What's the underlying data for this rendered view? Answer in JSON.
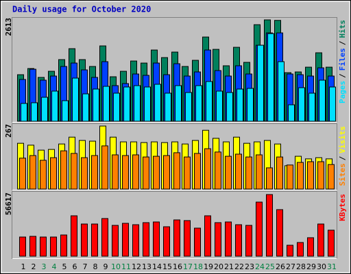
{
  "title": "Daily usage for October 2020",
  "legend_separator": "/",
  "chart_data": [
    {
      "type": "bar",
      "ylim": [
        0,
        2613
      ],
      "yticks": [
        2613
      ],
      "series": [
        {
          "name": "Hits",
          "color": "#00805c",
          "values": [
            1200,
            1359,
            1130,
            1288,
            1589,
            1871,
            1589,
            1412,
            1942,
            1147,
            1288,
            1553,
            1500,
            1836,
            1641,
            1783,
            1412,
            1571,
            2171,
            1853,
            1430,
            1906,
            1518,
            2489,
            2613,
            2600,
            1253,
            1271,
            1394,
            1765,
            1394
          ]
        },
        {
          "name": "Files",
          "color": "#0040ff",
          "values": [
            1077,
            1341,
            1059,
            1165,
            1412,
            1500,
            1324,
            1130,
            1536,
            918,
            971,
            1218,
            1183,
            1500,
            1200,
            1483,
            1165,
            1271,
            1836,
            1306,
            1165,
            1430,
            1218,
            1959,
            2277,
            2277,
            1218,
            1200,
            1165,
            1377,
            1165
          ]
        },
        {
          "name": "Pages",
          "color": "#00e0ff",
          "values": [
            459,
            477,
            618,
            777,
            530,
            1112,
            706,
            830,
            900,
            724,
            883,
            918,
            883,
            953,
            724,
            918,
            741,
            918,
            1024,
            777,
            741,
            830,
            847,
            1959,
            2259,
            1536,
            424,
            865,
            724,
            1059,
            883
          ]
        }
      ]
    },
    {
      "type": "bar",
      "ylim": [
        0,
        267
      ],
      "yticks": [
        267
      ],
      "series": [
        {
          "name": "Visits",
          "color": "#ffff00",
          "values": [
            194,
            186,
            165,
            168,
            191,
            220,
            206,
            203,
            267,
            220,
            200,
            200,
            197,
            200,
            197,
            200,
            191,
            206,
            249,
            215,
            200,
            220,
            194,
            200,
            206,
            191,
            99,
            139,
            128,
            133,
            128
          ]
        },
        {
          "name": "Sites",
          "color": "#ff8000",
          "values": [
            131,
            142,
            122,
            133,
            162,
            151,
            133,
            142,
            183,
            145,
            142,
            145,
            136,
            139,
            142,
            154,
            136,
            151,
            171,
            157,
            139,
            148,
            136,
            145,
            90,
            136,
            102,
            113,
            116,
            116,
            104
          ]
        }
      ]
    },
    {
      "type": "bar",
      "ylim": [
        0,
        56617
      ],
      "yticks": [
        56617
      ],
      "categories": [
        "1",
        "2",
        "3",
        "4",
        "5",
        "6",
        "7",
        "8",
        "9",
        "10",
        "11",
        "12",
        "13",
        "14",
        "15",
        "16",
        "17",
        "18",
        "19",
        "20",
        "21",
        "22",
        "23",
        "24",
        "25",
        "26",
        "27",
        "28",
        "29",
        "30",
        "31"
      ],
      "highlight_indices": [
        2,
        3,
        9,
        10,
        16,
        17,
        23,
        24,
        30
      ],
      "highlight_color": "#008040",
      "series": [
        {
          "name": "KBytes",
          "color": "#ff0000",
          "values": [
            17612,
            18241,
            17612,
            17612,
            19499,
            37111,
            29563,
            29563,
            34595,
            28305,
            30192,
            28934,
            30821,
            31450,
            27047,
            33337,
            32708,
            25789,
            37111,
            30821,
            31450,
            28934,
            28305,
            49691,
            56617,
            42772,
            10064,
            12580,
            16983,
            29563,
            23902
          ]
        }
      ]
    }
  ]
}
